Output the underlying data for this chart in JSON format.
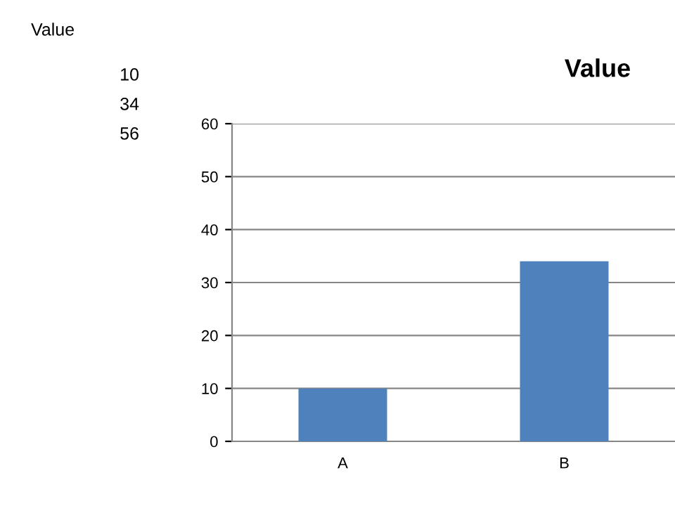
{
  "chart_data": {
    "type": "bar",
    "title": "Value",
    "categories": [
      "A",
      "B"
    ],
    "values": [
      10,
      34
    ],
    "color": "#4f81bd",
    "ylim": [
      0,
      60
    ],
    "yticks": [
      0,
      10,
      20,
      30,
      40,
      50,
      60
    ],
    "grid": "y",
    "annotations": [
      "Value",
      "10",
      "34",
      "56"
    ]
  }
}
